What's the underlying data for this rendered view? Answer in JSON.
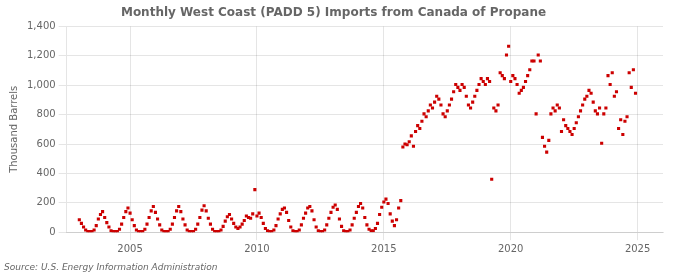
{
  "chart_data": {
    "type": "scatter",
    "title": "Monthly West Coast (PADD 5) Imports from Canada of Propane",
    "y_label": "Thousand Barrels",
    "annotations": [
      "Source: U.S. Energy Information Administration"
    ],
    "color": "#cc0000",
    "marker": "square",
    "grid": true,
    "xlim": [
      2002.5,
      2026.0
    ],
    "xticks": [
      2005,
      2010,
      2015,
      2020,
      2025
    ],
    "ylim": [
      0,
      1400
    ],
    "yticks": [
      0,
      200,
      400,
      600,
      800,
      {
        "value": 1000,
        "label": "1,000"
      },
      {
        "value": 1200,
        "label": "1,200"
      },
      {
        "value": 1400,
        "label": "1,400"
      }
    ],
    "x": [
      2003.0,
      2003.083,
      2003.167,
      2003.25,
      2003.333,
      2003.417,
      2003.5,
      2003.583,
      2003.667,
      2003.75,
      2003.833,
      2003.917,
      2004.0,
      2004.083,
      2004.167,
      2004.25,
      2004.333,
      2004.417,
      2004.5,
      2004.583,
      2004.667,
      2004.75,
      2004.833,
      2004.917,
      2005.0,
      2005.083,
      2005.167,
      2005.25,
      2005.333,
      2005.417,
      2005.5,
      2005.583,
      2005.667,
      2005.75,
      2005.833,
      2005.917,
      2006.0,
      2006.083,
      2006.167,
      2006.25,
      2006.333,
      2006.417,
      2006.5,
      2006.583,
      2006.667,
      2006.75,
      2006.833,
      2006.917,
      2007.0,
      2007.083,
      2007.167,
      2007.25,
      2007.333,
      2007.417,
      2007.5,
      2007.583,
      2007.667,
      2007.75,
      2007.833,
      2007.917,
      2008.0,
      2008.083,
      2008.167,
      2008.25,
      2008.333,
      2008.417,
      2008.5,
      2008.583,
      2008.667,
      2008.75,
      2008.833,
      2008.917,
      2009.0,
      2009.083,
      2009.167,
      2009.25,
      2009.333,
      2009.417,
      2009.5,
      2009.583,
      2009.667,
      2009.75,
      2009.833,
      2009.917,
      2010.0,
      2010.083,
      2010.167,
      2010.25,
      2010.333,
      2010.417,
      2010.5,
      2010.583,
      2010.667,
      2010.75,
      2010.833,
      2010.917,
      2011.0,
      2011.083,
      2011.167,
      2011.25,
      2011.333,
      2011.417,
      2011.5,
      2011.583,
      2011.667,
      2011.75,
      2011.833,
      2011.917,
      2012.0,
      2012.083,
      2012.167,
      2012.25,
      2012.333,
      2012.417,
      2012.5,
      2012.583,
      2012.667,
      2012.75,
      2012.833,
      2012.917,
      2013.0,
      2013.083,
      2013.167,
      2013.25,
      2013.333,
      2013.417,
      2013.5,
      2013.583,
      2013.667,
      2013.75,
      2013.833,
      2013.917,
      2014.0,
      2014.083,
      2014.167,
      2014.25,
      2014.333,
      2014.417,
      2014.5,
      2014.583,
      2014.667,
      2014.75,
      2014.833,
      2014.917,
      2015.0,
      2015.083,
      2015.167,
      2015.25,
      2015.333,
      2015.417,
      2015.5,
      2015.583,
      2015.667,
      2015.75,
      2015.833,
      2015.917,
      2016.0,
      2016.083,
      2016.167,
      2016.25,
      2016.333,
      2016.417,
      2016.5,
      2016.583,
      2016.667,
      2016.75,
      2016.833,
      2016.917,
      2017.0,
      2017.083,
      2017.167,
      2017.25,
      2017.333,
      2017.417,
      2017.5,
      2017.583,
      2017.667,
      2017.75,
      2017.833,
      2017.917,
      2018.0,
      2018.083,
      2018.167,
      2018.25,
      2018.333,
      2018.417,
      2018.5,
      2018.583,
      2018.667,
      2018.75,
      2018.833,
      2018.917,
      2019.0,
      2019.083,
      2019.167,
      2019.25,
      2019.333,
      2019.417,
      2019.5,
      2019.583,
      2019.667,
      2019.75,
      2019.833,
      2019.917,
      2020.0,
      2020.083,
      2020.167,
      2020.25,
      2020.333,
      2020.417,
      2020.5,
      2020.583,
      2020.667,
      2020.75,
      2020.833,
      2020.917,
      2021.0,
      2021.083,
      2021.167,
      2021.25,
      2021.333,
      2021.417,
      2021.5,
      2021.583,
      2021.667,
      2021.75,
      2021.833,
      2021.917,
      2022.0,
      2022.083,
      2022.167,
      2022.25,
      2022.333,
      2022.417,
      2022.5,
      2022.583,
      2022.667,
      2022.75,
      2022.833,
      2022.917,
      2023.0,
      2023.083,
      2023.167,
      2023.25,
      2023.333,
      2023.417,
      2023.5,
      2023.583,
      2023.667,
      2023.75,
      2023.833,
      2023.917,
      2024.0,
      2024.083,
      2024.167,
      2024.25,
      2024.333,
      2024.417,
      2024.5,
      2024.583,
      2024.667,
      2024.75,
      2024.833,
      2024.917
    ],
    "values": [
      85,
      60,
      35,
      15,
      5,
      5,
      5,
      15,
      45,
      90,
      120,
      140,
      100,
      65,
      35,
      10,
      5,
      5,
      5,
      20,
      55,
      100,
      140,
      165,
      130,
      85,
      45,
      15,
      5,
      5,
      5,
      20,
      55,
      100,
      145,
      175,
      135,
      90,
      50,
      15,
      5,
      5,
      5,
      20,
      55,
      100,
      145,
      175,
      140,
      90,
      50,
      15,
      5,
      5,
      5,
      20,
      55,
      100,
      150,
      180,
      145,
      95,
      55,
      20,
      5,
      5,
      5,
      15,
      40,
      75,
      105,
      120,
      90,
      60,
      35,
      25,
      35,
      55,
      80,
      110,
      100,
      95,
      125,
      290,
      110,
      130,
      100,
      60,
      25,
      10,
      5,
      5,
      15,
      45,
      90,
      125,
      155,
      165,
      135,
      80,
      35,
      10,
      5,
      5,
      15,
      50,
      95,
      130,
      165,
      175,
      145,
      85,
      35,
      10,
      5,
      5,
      15,
      50,
      95,
      135,
      170,
      185,
      155,
      90,
      40,
      10,
      5,
      5,
      15,
      50,
      95,
      135,
      175,
      195,
      165,
      100,
      50,
      20,
      10,
      10,
      25,
      60,
      120,
      170,
      205,
      225,
      195,
      125,
      75,
      45,
      85,
      165,
      215,
      580,
      600,
      595,
      615,
      655,
      585,
      685,
      725,
      705,
      755,
      805,
      785,
      825,
      865,
      845,
      885,
      925,
      905,
      865,
      805,
      785,
      825,
      865,
      905,
      955,
      1005,
      985,
      965,
      1005,
      985,
      925,
      865,
      845,
      885,
      925,
      965,
      1005,
      1045,
      1025,
      1005,
      1045,
      1025,
      360,
      845,
      825,
      865,
      1085,
      1065,
      1045,
      1205,
      1265,
      1025,
      1065,
      1045,
      1005,
      945,
      965,
      985,
      1025,
      1065,
      1105,
      1165,
      1165,
      805,
      1205,
      1165,
      645,
      585,
      545,
      625,
      805,
      845,
      825,
      865,
      845,
      685,
      765,
      725,
      705,
      685,
      665,
      705,
      745,
      785,
      825,
      865,
      905,
      925,
      965,
      945,
      885,
      825,
      805,
      845,
      605,
      805,
      845,
      1065,
      1005,
      1085,
      925,
      955,
      705,
      765,
      665,
      755,
      785,
      1085,
      985,
      1105,
      945
    ]
  }
}
